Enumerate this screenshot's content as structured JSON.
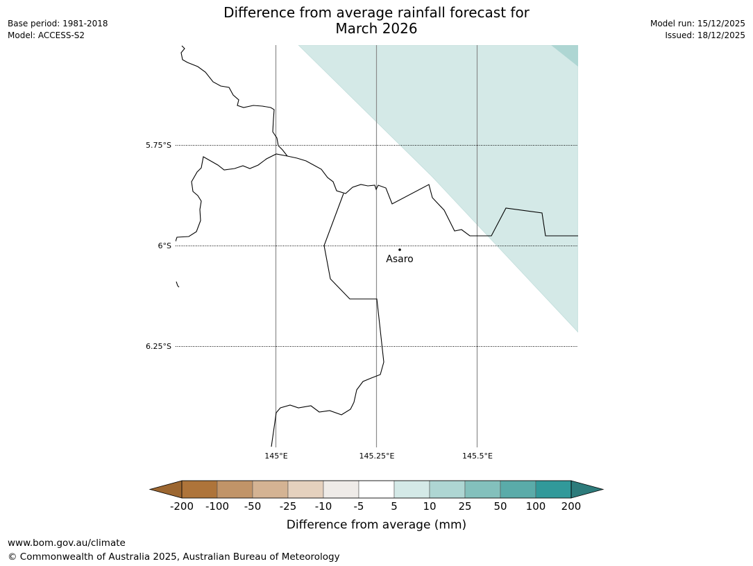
{
  "header": {
    "title_line1": "Difference from average rainfall forecast for",
    "title_line2": "March 2026",
    "base_period": "Base period: 1981-2018",
    "model": "Model: ACCESS-S2",
    "model_run": "Model run: 15/12/2025",
    "issued": "Issued: 18/12/2025"
  },
  "map": {
    "lat_labels": [
      "5.75°S",
      "6°S",
      "6.25°S"
    ],
    "lon_labels": [
      "145°E",
      "145.25°E",
      "145.5°E"
    ],
    "place": {
      "name": "Asaro",
      "lon": 145.3,
      "lat": -6.01
    },
    "shading": [
      {
        "category": "5 to 10",
        "color": "#d4e9e7"
      },
      {
        "category": "10 to 25",
        "color": "#aed6d3"
      }
    ]
  },
  "legend": {
    "title": "Difference from average (mm)",
    "tick_labels": [
      "-200",
      "-100",
      "-50",
      "-25",
      "-10",
      "-5",
      "5",
      "10",
      "25",
      "50",
      "100",
      "200"
    ],
    "colors": [
      "#9c6630",
      "#ae743a",
      "#c19468",
      "#d4b393",
      "#e5d1be",
      "#efebe8",
      "#ffffff",
      "#d4e9e7",
      "#aed6d3",
      "#83c0bc",
      "#5aaba9",
      "#31999a",
      "#2d7b7b"
    ]
  },
  "footer": {
    "url": "www.bom.gov.au/climate",
    "copyright": "© Commonwealth of Australia 2025, Australian Bureau of Meteorology"
  }
}
